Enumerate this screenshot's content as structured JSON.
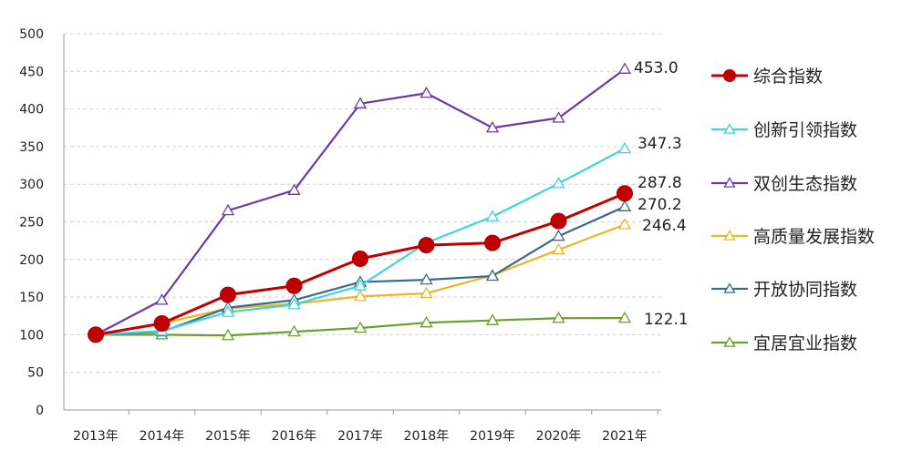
{
  "chart_data": {
    "type": "line",
    "title": "",
    "xlabel": "",
    "ylabel": "",
    "categories": [
      "2013年",
      "2014年",
      "2015年",
      "2016年",
      "2017年",
      "2018年",
      "2019年",
      "2020年",
      "2021年"
    ],
    "ylim": [
      0,
      500
    ],
    "yticks": [
      0,
      50,
      100,
      150,
      200,
      250,
      300,
      350,
      400,
      450,
      500
    ],
    "grid": "horizontal dashed",
    "legend_position": "right",
    "series": [
      {
        "name": "综合指数",
        "color": "#c00000",
        "marker": "circle",
        "values": [
          100,
          115,
          153,
          165,
          201,
          219,
          222,
          251,
          287.8
        ],
        "end_label": "287.8"
      },
      {
        "name": "创新引领指数",
        "color": "#3fd5d8",
        "marker": "triangle",
        "values": [
          100,
          105,
          130,
          140,
          165,
          222,
          257,
          301,
          347.3
        ],
        "end_label": "347.3"
      },
      {
        "name": "双创生态指数",
        "color": "#6a3ba8",
        "marker": "triangle",
        "values": [
          100,
          146,
          265,
          292,
          407,
          421,
          375,
          388,
          453.0
        ],
        "end_label": "453.0"
      },
      {
        "name": "高质量发展指数",
        "color": "#f0b323",
        "marker": "triangle",
        "values": [
          100,
          115,
          135,
          141,
          151,
          155,
          179,
          213,
          246.4
        ],
        "end_label": "246.4"
      },
      {
        "name": "开放协同指数",
        "color": "#3a6a8c",
        "marker": "triangle",
        "values": [
          100,
          104,
          136,
          146,
          170,
          173,
          178,
          231,
          270.2
        ],
        "end_label": "270.2"
      },
      {
        "name": "宜居宜业指数",
        "color": "#6a9e2d",
        "marker": "triangle",
        "values": [
          100,
          100,
          99,
          104,
          109,
          116,
          119,
          122,
          122.1
        ],
        "end_label": "122.1"
      }
    ]
  }
}
